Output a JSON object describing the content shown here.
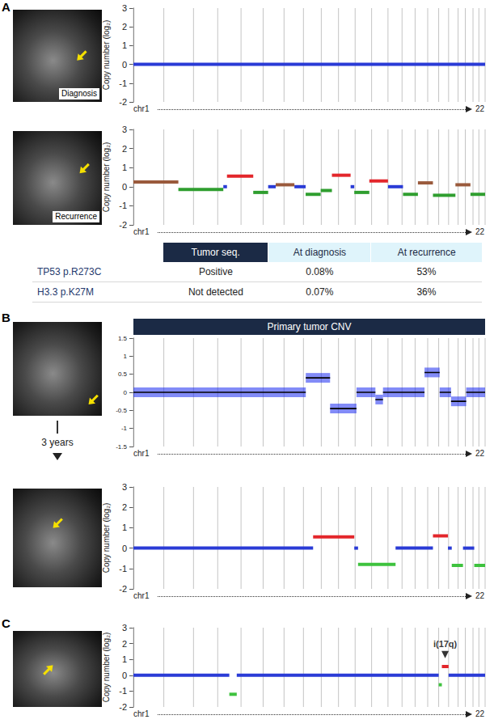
{
  "panel_labels": [
    "A",
    "B",
    "C"
  ],
  "image_captions": [
    "Diagnosis",
    "Recurrence"
  ],
  "interval_label": "3 years",
  "table": {
    "header": [
      "Tumor seq.",
      "At diagnosis",
      "At recurrence"
    ],
    "rows": [
      {
        "label": "TP53 p.R273C",
        "cells": [
          "Positive",
          "0.08%",
          "53%"
        ]
      },
      {
        "label": "H3.3 p.K27M",
        "cells": [
          "Not detected",
          "0.07%",
          "36%"
        ]
      }
    ]
  },
  "chart_data": [
    {
      "type": "line",
      "y_label": "Copy number (log₂)",
      "x_label_start": "chr1",
      "x_label_end": "22",
      "xlim": [
        0,
        2879
      ],
      "xticks": [
        0,
        249,
        492,
        690,
        881,
        1062,
        1233,
        1392,
        1538,
        1679,
        1815,
        1950,
        2084,
        2199,
        2306,
        2409,
        2499,
        2580,
        2658,
        2717,
        2780,
        2828,
        2879
      ],
      "ylim": [
        -2,
        3
      ],
      "yticks": [
        -2,
        -1,
        0,
        1,
        2,
        3
      ],
      "grid": true,
      "tick_labels": "y",
      "series": [
        {
          "color": "#2a3bd6",
          "segments": [
            [
              0,
              2879,
              0
            ]
          ]
        }
      ]
    },
    {
      "type": "line",
      "y_label": "Copy number (log₂)",
      "x_label_start": "chr1",
      "x_label_end": "22",
      "xlim": [
        0,
        2879
      ],
      "xticks": [
        0,
        249,
        492,
        690,
        881,
        1062,
        1233,
        1392,
        1538,
        1679,
        1815,
        1950,
        2084,
        2199,
        2306,
        2409,
        2499,
        2580,
        2658,
        2717,
        2780,
        2828,
        2879
      ],
      "ylim": [
        -2,
        3
      ],
      "yticks": [
        -2,
        -1,
        0,
        1,
        2,
        3
      ],
      "grid": true,
      "tick_labels": "y",
      "series": [
        {
          "color": "#2a3bd6",
          "segments": [
            [
              736,
              766,
              0
            ],
            [
              1103,
              1165,
              0
            ],
            [
              1318,
              1410,
              0
            ],
            [
              1778,
              1808,
              0
            ],
            [
              2084,
              2207,
              0
            ]
          ]
        },
        {
          "color": "#9a5a3c",
          "segments": [
            [
              0,
              368,
              0.25
            ],
            [
              1165,
              1318,
              0.1
            ],
            [
              2329,
              2452,
              0.2
            ],
            [
              2636,
              2759,
              0.1
            ]
          ]
        },
        {
          "color": "#2f9e2f",
          "segments": [
            [
              368,
              736,
              -0.15
            ],
            [
              981,
              1103,
              -0.3
            ],
            [
              1410,
              1533,
              -0.4
            ],
            [
              1533,
              1625,
              -0.2
            ],
            [
              1808,
              1931,
              -0.3
            ],
            [
              2207,
              2329,
              -0.4
            ],
            [
              2452,
              2636,
              -0.45
            ],
            [
              2759,
              2879,
              -0.4
            ]
          ]
        },
        {
          "color": "#e3262b",
          "segments": [
            [
              766,
              981,
              0.55
            ],
            [
              1625,
              1778,
              0.6
            ],
            [
              1931,
              2084,
              0.3
            ]
          ]
        }
      ]
    },
    {
      "type": "line",
      "title": "Primary tumor CNV",
      "x_label_start": "chr1",
      "x_label_end": "22",
      "xlim": [
        0,
        2879
      ],
      "xticks": [
        0,
        249,
        492,
        690,
        881,
        1062,
        1233,
        1392,
        1538,
        1679,
        1815,
        1950,
        2084,
        2199,
        2306,
        2409,
        2499,
        2580,
        2658,
        2717,
        2780,
        2828,
        2879
      ],
      "ylim": [
        -1.5,
        1.5
      ],
      "yticks": [
        -1.5,
        -1,
        -0.5,
        0,
        0.5,
        1,
        1.5
      ],
      "grid": true,
      "tick_labels": "y",
      "series": [
        {
          "color": "#1c2cf0",
          "line_style": "band",
          "segments": [
            [
              0,
              1411,
              0
            ],
            [
              1411,
              1610,
              0.4
            ],
            [
              1610,
              1826,
              -0.45
            ],
            [
              1826,
              1981,
              0
            ],
            [
              1981,
              2043,
              -0.2
            ],
            [
              2043,
              2383,
              0
            ],
            [
              2383,
              2507,
              0.55
            ],
            [
              2507,
              2600,
              0
            ],
            [
              2600,
              2724,
              -0.25
            ],
            [
              2724,
              2879,
              0
            ]
          ]
        },
        {
          "color": "#000000",
          "line_style": "solid",
          "segments": [
            [
              0,
              1411,
              0
            ],
            [
              1411,
              1610,
              0.4
            ],
            [
              1610,
              1826,
              -0.45
            ],
            [
              1826,
              1981,
              0
            ],
            [
              1981,
              2043,
              -0.2
            ],
            [
              2043,
              2383,
              0
            ],
            [
              2383,
              2507,
              0.55
            ],
            [
              2507,
              2600,
              0
            ],
            [
              2600,
              2724,
              -0.25
            ],
            [
              2724,
              2879,
              0
            ]
          ]
        }
      ]
    },
    {
      "type": "line",
      "y_label": "Copy number (log₂)",
      "x_label_start": "chr1",
      "x_label_end": "22",
      "xlim": [
        0,
        2879
      ],
      "xticks": [
        0,
        249,
        492,
        690,
        881,
        1062,
        1233,
        1392,
        1538,
        1679,
        1815,
        1950,
        2084,
        2199,
        2306,
        2409,
        2499,
        2580,
        2658,
        2717,
        2780,
        2828,
        2879
      ],
      "ylim": [
        -2,
        3
      ],
      "yticks": [
        -2,
        -1,
        0,
        1,
        2,
        3
      ],
      "grid": true,
      "tick_labels": "y",
      "series": [
        {
          "color": "#2a3bd6",
          "segments": [
            [
              0,
              1471,
              0
            ],
            [
              1808,
              1839,
              0
            ],
            [
              2146,
              2452,
              0
            ],
            [
              2575,
              2606,
              0
            ],
            [
              2698,
              2790,
              0
            ]
          ]
        },
        {
          "color": "#e3262b",
          "segments": [
            [
              1471,
              1808,
              0.55
            ],
            [
              2452,
              2575,
              0.6
            ]
          ]
        },
        {
          "color": "#3ec23e",
          "segments": [
            [
              1839,
              2146,
              -0.8
            ],
            [
              2606,
              2698,
              -0.85
            ],
            [
              2790,
              2879,
              -0.85
            ]
          ]
        }
      ]
    },
    {
      "type": "line",
      "y_label": "Copy number (log₂)",
      "x_label_start": "chr1",
      "x_label_end": "22",
      "xlim": [
        0,
        2879
      ],
      "xticks": [
        0,
        249,
        492,
        690,
        881,
        1062,
        1233,
        1392,
        1538,
        1679,
        1815,
        1950,
        2084,
        2199,
        2306,
        2409,
        2499,
        2580,
        2658,
        2717,
        2780,
        2828,
        2879
      ],
      "ylim": [
        -2,
        3
      ],
      "yticks": [
        -2,
        -1,
        0,
        1,
        2,
        3
      ],
      "grid": true,
      "tick_labels": "y",
      "series": [
        {
          "color": "#2a3bd6",
          "segments": [
            [
              0,
              785,
              0
            ],
            [
              846,
              2499,
              0
            ],
            [
              2580,
              2879,
              0
            ]
          ]
        },
        {
          "color": "#3ec23e",
          "segments": [
            [
              785,
              846,
              -1.2
            ],
            [
              2499,
              2525,
              -0.6
            ]
          ]
        },
        {
          "color": "#e3262b",
          "segments": [
            [
              2525,
              2580,
              0.55
            ]
          ]
        }
      ],
      "annotations": [
        {
          "text": "i(17q)",
          "x": 2552,
          "y": 1.3
        }
      ]
    }
  ]
}
